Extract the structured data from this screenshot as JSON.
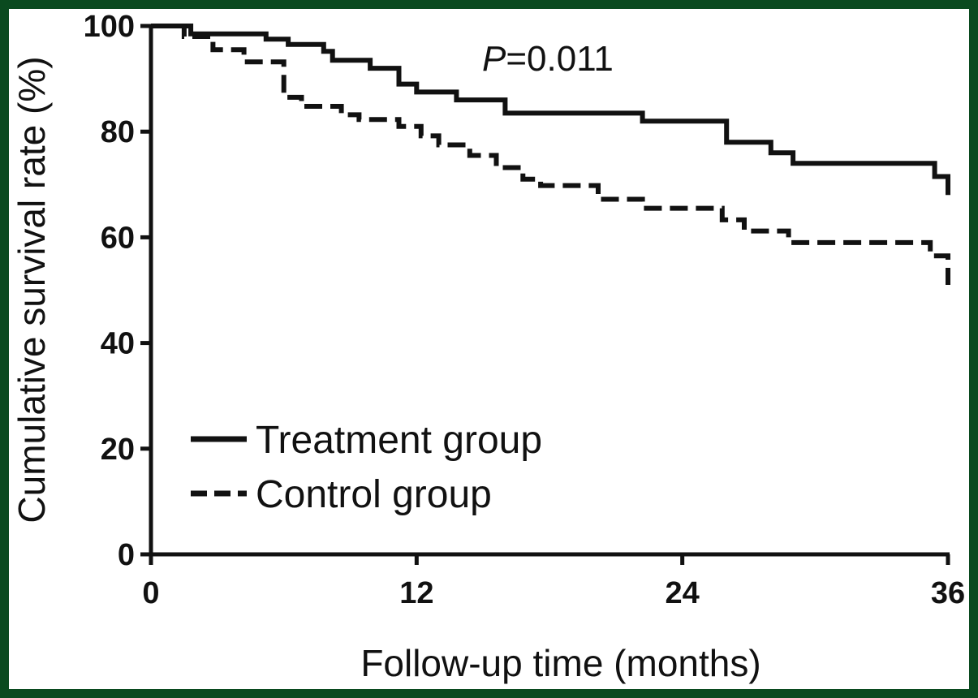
{
  "chart_data": {
    "type": "line",
    "subtype": "kaplan-meier step curve",
    "title": "",
    "annotation": {
      "italic_part": "P",
      "rest": "=0.011"
    },
    "xlabel": "Follow-up time (months)",
    "ylabel": "Cumulative survival rate (%)",
    "xlim": [
      0,
      36
    ],
    "ylim": [
      0,
      100
    ],
    "xticks": [
      0,
      12,
      24,
      36
    ],
    "xtick_labels": [
      "0",
      "12",
      "24",
      "36"
    ],
    "yticks": [
      0,
      20,
      40,
      60,
      80,
      100
    ],
    "ytick_labels": [
      "0",
      "20",
      "40",
      "60",
      "80",
      "100"
    ],
    "grid": false,
    "legend_position": "bottom-left",
    "series": [
      {
        "name": "Treatment group",
        "style": "solid",
        "color": "#111111",
        "points": [
          [
            0,
            100
          ],
          [
            1.8,
            100
          ],
          [
            1.8,
            98.5
          ],
          [
            5.2,
            98.5
          ],
          [
            5.2,
            97.5
          ],
          [
            6.2,
            97.5
          ],
          [
            6.2,
            96.5
          ],
          [
            7.8,
            96.5
          ],
          [
            7.8,
            95.2
          ],
          [
            8.2,
            95.2
          ],
          [
            8.2,
            93.5
          ],
          [
            9.9,
            93.5
          ],
          [
            9.9,
            92
          ],
          [
            11.2,
            92
          ],
          [
            11.2,
            89
          ],
          [
            12,
            89
          ],
          [
            12,
            87.5
          ],
          [
            13.8,
            87.5
          ],
          [
            13.8,
            86
          ],
          [
            16,
            86
          ],
          [
            16,
            83.5
          ],
          [
            22.2,
            83.5
          ],
          [
            22.2,
            82
          ],
          [
            26,
            82
          ],
          [
            26,
            78
          ],
          [
            28,
            78
          ],
          [
            28,
            76
          ],
          [
            29,
            76
          ],
          [
            29,
            74
          ],
          [
            35.4,
            74
          ],
          [
            35.4,
            71.5
          ],
          [
            36,
            71.5
          ],
          [
            36,
            68
          ]
        ]
      },
      {
        "name": "Control group",
        "style": "dashed",
        "color": "#111111",
        "points": [
          [
            0,
            100
          ],
          [
            1.5,
            100
          ],
          [
            1.5,
            98
          ],
          [
            2.8,
            98
          ],
          [
            2.8,
            95.5
          ],
          [
            4.2,
            95.5
          ],
          [
            4.2,
            93.2
          ],
          [
            6,
            93.2
          ],
          [
            6,
            86.5
          ],
          [
            6.8,
            86.5
          ],
          [
            6.8,
            84.8
          ],
          [
            8.6,
            84.8
          ],
          [
            8.6,
            83.2
          ],
          [
            9.4,
            83.2
          ],
          [
            9.4,
            82.3
          ],
          [
            11.2,
            82.3
          ],
          [
            11.2,
            81
          ],
          [
            12.2,
            81
          ],
          [
            12.2,
            79.2
          ],
          [
            13,
            79.2
          ],
          [
            13,
            77.5
          ],
          [
            14.4,
            77.5
          ],
          [
            14.4,
            75.5
          ],
          [
            15.6,
            75.5
          ],
          [
            15.6,
            73.2
          ],
          [
            16.8,
            73.2
          ],
          [
            16.8,
            71
          ],
          [
            17.6,
            71
          ],
          [
            17.6,
            69.8
          ],
          [
            20.2,
            69.8
          ],
          [
            20.2,
            67.2
          ],
          [
            22.2,
            67.2
          ],
          [
            22.2,
            65.5
          ],
          [
            25.8,
            65.5
          ],
          [
            25.8,
            63.3
          ],
          [
            26.8,
            63.3
          ],
          [
            26.8,
            61.2
          ],
          [
            28.8,
            61.2
          ],
          [
            28.8,
            59
          ],
          [
            35.2,
            59
          ],
          [
            35.2,
            56.5
          ],
          [
            36,
            56.5
          ],
          [
            36,
            51
          ]
        ]
      }
    ]
  }
}
